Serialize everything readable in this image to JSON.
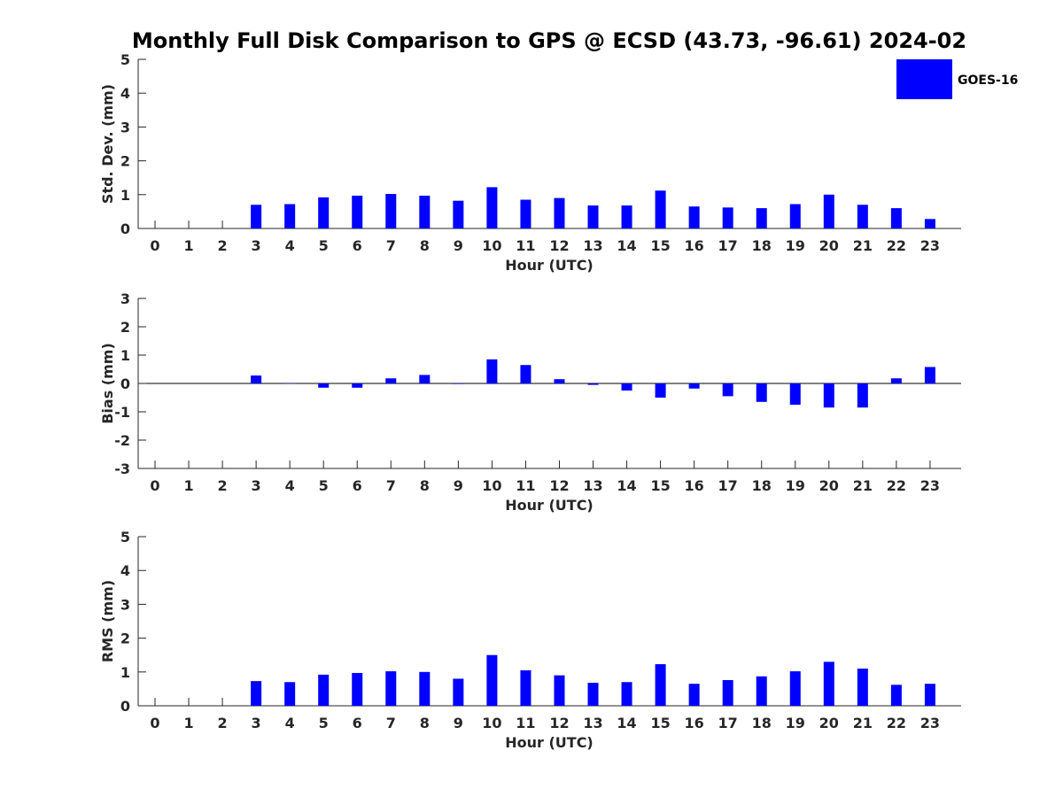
{
  "figure": {
    "title": "Monthly Full Disk Comparison to GPS @ ECSD (43.73, -96.61) 2024-02"
  },
  "legend": {
    "label": "GOES-16",
    "color": "#0000ff",
    "placement": "top-right"
  },
  "chart_data": [
    {
      "type": "bar",
      "id": "std",
      "xlabel": "Hour (UTC)",
      "ylabel": "Std. Dev. (mm)",
      "ylim": [
        0,
        5
      ],
      "yticks": [
        "0",
        "1",
        "2",
        "3",
        "4",
        "5"
      ],
      "categories": [
        "0",
        "1",
        "2",
        "3",
        "4",
        "5",
        "6",
        "7",
        "8",
        "9",
        "10",
        "11",
        "12",
        "13",
        "14",
        "15",
        "16",
        "17",
        "18",
        "19",
        "20",
        "21",
        "22",
        "23"
      ],
      "series": [
        {
          "name": "GOES-16",
          "color": "#0000ff",
          "values": [
            null,
            null,
            null,
            0.7,
            0.72,
            0.92,
            0.97,
            1.02,
            0.97,
            0.82,
            1.22,
            0.85,
            0.9,
            0.68,
            0.68,
            1.12,
            0.65,
            0.62,
            0.6,
            0.72,
            1.0,
            0.7,
            0.6,
            0.28
          ]
        }
      ]
    },
    {
      "type": "bar",
      "id": "bias",
      "xlabel": "Hour (UTC)",
      "ylabel": "Bias (mm)",
      "ylim": [
        -3,
        3
      ],
      "yticks": [
        "-3",
        "-2",
        "-1",
        "0",
        "1",
        "2",
        "3"
      ],
      "categories": [
        "0",
        "1",
        "2",
        "3",
        "4",
        "5",
        "6",
        "7",
        "8",
        "9",
        "10",
        "11",
        "12",
        "13",
        "14",
        "15",
        "16",
        "17",
        "18",
        "19",
        "20",
        "21",
        "22",
        "23"
      ],
      "series": [
        {
          "name": "GOES-16",
          "color": "#0000ff",
          "values": [
            null,
            null,
            null,
            0.28,
            0.0,
            -0.15,
            -0.15,
            0.18,
            0.3,
            -0.02,
            0.85,
            0.65,
            0.15,
            -0.05,
            -0.25,
            -0.5,
            -0.18,
            -0.45,
            -0.65,
            -0.75,
            -0.85,
            -0.85,
            0.18,
            0.58
          ]
        }
      ]
    },
    {
      "type": "bar",
      "id": "rms",
      "xlabel": "Hour (UTC)",
      "ylabel": "RMS (mm)",
      "ylim": [
        0,
        5
      ],
      "yticks": [
        "0",
        "1",
        "2",
        "3",
        "4",
        "5"
      ],
      "categories": [
        "0",
        "1",
        "2",
        "3",
        "4",
        "5",
        "6",
        "7",
        "8",
        "9",
        "10",
        "11",
        "12",
        "13",
        "14",
        "15",
        "16",
        "17",
        "18",
        "19",
        "20",
        "21",
        "22",
        "23"
      ],
      "series": [
        {
          "name": "GOES-16",
          "color": "#0000ff",
          "values": [
            null,
            null,
            null,
            0.73,
            0.7,
            0.92,
            0.97,
            1.02,
            1.0,
            0.8,
            1.5,
            1.05,
            0.9,
            0.68,
            0.7,
            1.23,
            0.65,
            0.76,
            0.87,
            1.02,
            1.3,
            1.1,
            0.62,
            0.65
          ]
        }
      ]
    }
  ]
}
